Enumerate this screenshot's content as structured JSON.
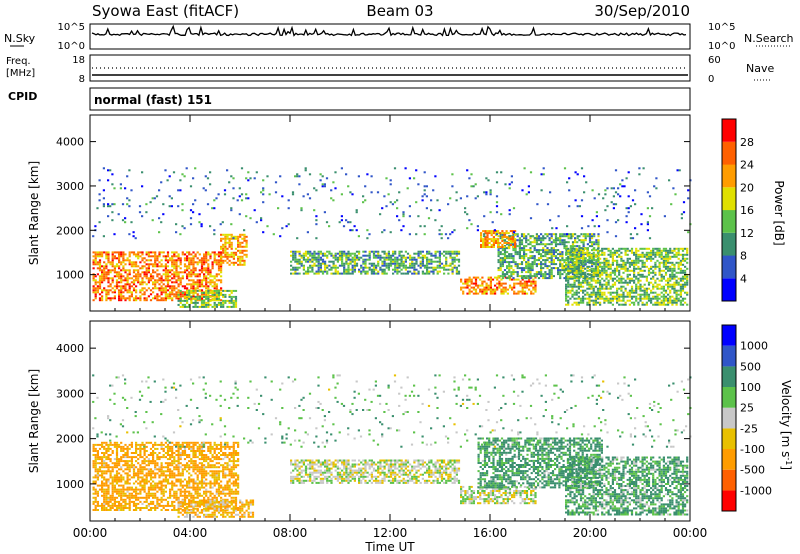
{
  "header": {
    "station": "Syowa East (fitACF)",
    "beam": "Beam 03",
    "date": "30/Sep/2010"
  },
  "noise_panel": {
    "left_label": "N.Sky",
    "left_tick_top": "10^5",
    "left_tick_bottom": "10^0",
    "right_label": "N.Search",
    "right_tick_top": "10^5",
    "right_tick_bottom": "10^0"
  },
  "freq_panel": {
    "left_label_line1": "Freq.",
    "left_label_line2": "[MHz]",
    "left_tick_top": "18",
    "left_tick_bottom": "8",
    "right_label": "Nave",
    "right_tick_top": "60",
    "right_tick_bottom": "0"
  },
  "cpid_panel": {
    "label": "CPID",
    "value": "normal (fast) 151"
  },
  "power_panel": {
    "ylabel": "Slant Range [km]",
    "yticks": [
      "1000",
      "2000",
      "3000",
      "4000"
    ],
    "colorbar_label": "Power [dB]",
    "colorbar_ticks": [
      "4",
      "8",
      "12",
      "16",
      "20",
      "24",
      "28"
    ],
    "colorbar_colors": [
      "#0000ff",
      "#3056c8",
      "#3a8f6e",
      "#5cc24a",
      "#e0e000",
      "#ff9c00",
      "#ff6000",
      "#ff0000"
    ]
  },
  "velocity_panel": {
    "ylabel": "Slant Range [km]",
    "yticks": [
      "1000",
      "2000",
      "3000",
      "4000"
    ],
    "colorbar_label": "Velocity [m s",
    "colorbar_label_sup": "-1",
    "colorbar_label_end": "]",
    "colorbar_ticks": [
      "-1000",
      "-500",
      "-100",
      "-25",
      "25",
      "100",
      "500",
      "1000"
    ],
    "colorbar_colors": [
      "#ff0000",
      "#ff6000",
      "#ff9c00",
      "#e8c000",
      "#c8c8c8",
      "#5cc24a",
      "#3a8f6e",
      "#3056c8",
      "#0000ff"
    ]
  },
  "xaxis": {
    "label": "Time UT",
    "ticks": [
      "00:00",
      "04:00",
      "08:00",
      "12:00",
      "16:00",
      "20:00",
      "00:00"
    ]
  },
  "chart_data": [
    {
      "type": "heatmap",
      "title": "Power [dB]",
      "xlabel": "Time UT",
      "ylabel": "Slant Range [km]",
      "xlim": [
        "00:00",
        "24:00"
      ],
      "ylim": [
        180,
        4600
      ],
      "clim": [
        0,
        30
      ],
      "regions": [
        {
          "t0": 0.1,
          "t1": 5.2,
          "r0": 400,
          "r1": 1500,
          "power": 24
        },
        {
          "t0": 5.2,
          "t1": 6.3,
          "r0": 1200,
          "r1": 1900,
          "power": 22
        },
        {
          "t0": 3.5,
          "t1": 5.8,
          "r0": 250,
          "r1": 650,
          "power": 14
        },
        {
          "t0": 8.0,
          "t1": 14.8,
          "r0": 1000,
          "r1": 1500,
          "power": 12
        },
        {
          "t0": 14.8,
          "t1": 17.8,
          "r0": 550,
          "r1": 950,
          "power": 24
        },
        {
          "t0": 16.3,
          "t1": 20.3,
          "r0": 900,
          "r1": 1900,
          "power": 12
        },
        {
          "t0": 19.0,
          "t1": 23.9,
          "r0": 300,
          "r1": 1600,
          "power": 14
        },
        {
          "t0": 15.6,
          "t1": 17.0,
          "r0": 1600,
          "r1": 2000,
          "power": 22
        },
        {
          "t0": 0.0,
          "t1": 24.0,
          "r0": 1800,
          "r1": 3400,
          "power": 8
        }
      ]
    },
    {
      "type": "heatmap",
      "title": "Velocity [m s-1]",
      "xlabel": "Time UT",
      "ylabel": "Slant Range [km]",
      "xlim": [
        "00:00",
        "24:00"
      ],
      "ylim": [
        180,
        4600
      ],
      "clim": [
        -1000,
        1000
      ],
      "regions": [
        {
          "t0": 0.1,
          "t1": 5.9,
          "r0": 400,
          "r1": 1900,
          "velocity": -150
        },
        {
          "t0": 3.5,
          "t1": 6.5,
          "r0": 250,
          "r1": 650,
          "velocity": -80
        },
        {
          "t0": 8.0,
          "t1": 14.8,
          "r0": 1000,
          "r1": 1500,
          "velocity": 0
        },
        {
          "t0": 14.8,
          "t1": 17.8,
          "r0": 550,
          "r1": 950,
          "velocity": 0
        },
        {
          "t0": 15.5,
          "t1": 20.5,
          "r0": 900,
          "r1": 2000,
          "velocity": 150
        },
        {
          "t0": 19.0,
          "t1": 23.9,
          "r0": 300,
          "r1": 1600,
          "velocity": 120
        },
        {
          "t0": 0.0,
          "t1": 24.0,
          "r0": 1800,
          "r1": 3400,
          "velocity": 60
        }
      ]
    }
  ]
}
